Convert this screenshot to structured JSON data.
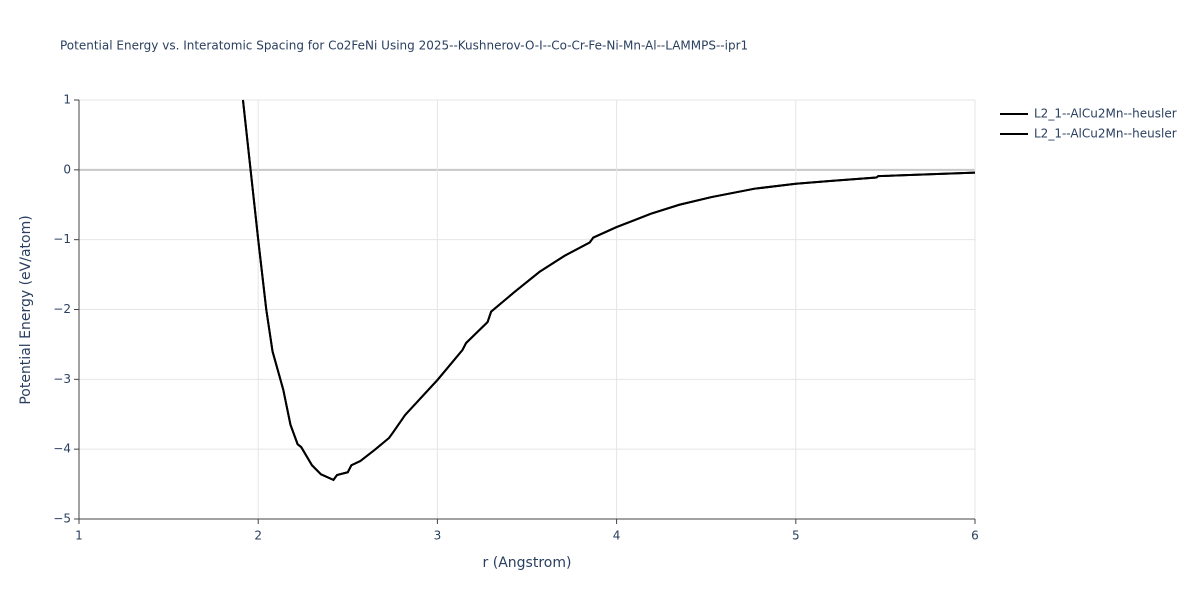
{
  "chart_data": {
    "type": "line",
    "title": "Potential Energy vs. Interatomic Spacing for Co2FeNi Using 2025--Kushnerov-O-I--Co-Cr-Fe-Ni-Mn-Al--LAMMPS--ipr1",
    "x_label": "r (Angstrom)",
    "y_label": "Potential Energy (eV/atom)",
    "xlim": [
      1,
      6
    ],
    "ylim": [
      -5,
      1
    ],
    "xticks": [
      1,
      2,
      3,
      4,
      5,
      6
    ],
    "yticks": [
      {
        "value": -5,
        "label": "−5"
      },
      {
        "value": -4,
        "label": "−4"
      },
      {
        "value": -3,
        "label": "−3"
      },
      {
        "value": -2,
        "label": "−2"
      },
      {
        "value": -1,
        "label": "−1"
      },
      0,
      1
    ],
    "grid": true,
    "legend": "right",
    "x": [
      1.915,
      2.0,
      2.045,
      2.08,
      2.14,
      2.18,
      2.22,
      2.24,
      2.3,
      2.35,
      2.42,
      2.44,
      2.5,
      2.52,
      2.57,
      2.65,
      2.73,
      2.75,
      2.82,
      3.0,
      3.14,
      3.16,
      3.28,
      3.3,
      3.43,
      3.57,
      3.71,
      3.85,
      3.87,
      4.0,
      4.19,
      4.35,
      4.53,
      4.77,
      5.0,
      5.19,
      5.45,
      5.46,
      6.0
    ],
    "series": [
      {
        "name": "L2_1--AlCu2Mn--heusler",
        "color": "#000000",
        "values": [
          1.0,
          -1.0,
          -2.0,
          -2.6,
          -3.15,
          -3.65,
          -3.93,
          -3.97,
          -4.23,
          -4.36,
          -4.44,
          -4.37,
          -4.33,
          -4.23,
          -4.17,
          -4.01,
          -3.84,
          -3.77,
          -3.51,
          -3.01,
          -2.58,
          -2.48,
          -2.18,
          -2.03,
          -1.75,
          -1.46,
          -1.23,
          -1.04,
          -0.97,
          -0.82,
          -0.63,
          -0.5,
          -0.39,
          -0.27,
          -0.2,
          -0.16,
          -0.11,
          -0.09,
          -0.04
        ]
      },
      {
        "name": "L2_1--AlCu2Mn--heusler",
        "color": "#000000",
        "values": [
          1.0,
          -1.0,
          -2.0,
          -2.6,
          -3.15,
          -3.65,
          -3.93,
          -3.97,
          -4.23,
          -4.36,
          -4.44,
          -4.37,
          -4.33,
          -4.23,
          -4.17,
          -4.01,
          -3.84,
          -3.77,
          -3.51,
          -3.01,
          -2.58,
          -2.48,
          -2.18,
          -2.03,
          -1.75,
          -1.46,
          -1.23,
          -1.04,
          -0.97,
          -0.82,
          -0.63,
          -0.5,
          -0.39,
          -0.27,
          -0.2,
          -0.16,
          -0.11,
          -0.09,
          -0.04
        ]
      }
    ]
  }
}
